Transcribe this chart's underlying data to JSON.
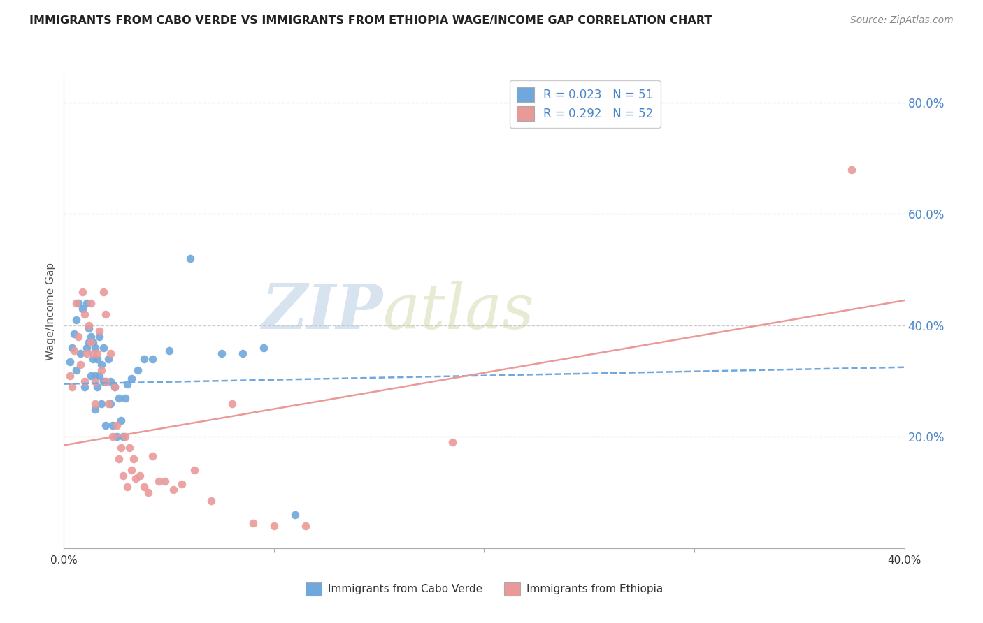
{
  "title": "IMMIGRANTS FROM CABO VERDE VS IMMIGRANTS FROM ETHIOPIA WAGE/INCOME GAP CORRELATION CHART",
  "source": "Source: ZipAtlas.com",
  "ylabel": "Wage/Income Gap",
  "xlim": [
    0.0,
    0.4
  ],
  "ylim": [
    0.0,
    0.85
  ],
  "right_yticks": [
    0.2,
    0.4,
    0.6,
    0.8
  ],
  "right_yticklabels": [
    "20.0%",
    "40.0%",
    "60.0%",
    "80.0%"
  ],
  "xticks": [
    0.0,
    0.1,
    0.2,
    0.3,
    0.4
  ],
  "xticklabels": [
    "0.0%",
    "",
    "",
    "",
    "40.0%"
  ],
  "watermark_zip": "ZIP",
  "watermark_atlas": "atlas",
  "cabo_verde_color": "#6fa8dc",
  "ethiopia_color": "#ea9999",
  "cabo_verde_R": "0.023",
  "cabo_verde_N": "51",
  "ethiopia_R": "0.292",
  "ethiopia_N": "52",
  "cabo_verde_scatter_x": [
    0.003,
    0.004,
    0.005,
    0.006,
    0.006,
    0.007,
    0.008,
    0.009,
    0.01,
    0.011,
    0.011,
    0.012,
    0.012,
    0.013,
    0.013,
    0.014,
    0.014,
    0.015,
    0.015,
    0.015,
    0.016,
    0.016,
    0.017,
    0.017,
    0.018,
    0.018,
    0.019,
    0.019,
    0.02,
    0.02,
    0.021,
    0.022,
    0.022,
    0.023,
    0.024,
    0.025,
    0.026,
    0.027,
    0.028,
    0.029,
    0.03,
    0.032,
    0.035,
    0.038,
    0.042,
    0.05,
    0.06,
    0.075,
    0.085,
    0.095,
    0.11
  ],
  "cabo_verde_scatter_y": [
    0.335,
    0.36,
    0.385,
    0.32,
    0.41,
    0.44,
    0.35,
    0.43,
    0.29,
    0.36,
    0.44,
    0.37,
    0.395,
    0.31,
    0.38,
    0.34,
    0.37,
    0.25,
    0.31,
    0.36,
    0.29,
    0.34,
    0.31,
    0.38,
    0.26,
    0.33,
    0.3,
    0.36,
    0.22,
    0.3,
    0.34,
    0.26,
    0.3,
    0.22,
    0.29,
    0.2,
    0.27,
    0.23,
    0.2,
    0.27,
    0.295,
    0.305,
    0.32,
    0.34,
    0.34,
    0.355,
    0.52,
    0.35,
    0.35,
    0.36,
    0.06
  ],
  "ethiopia_scatter_x": [
    0.003,
    0.004,
    0.005,
    0.006,
    0.007,
    0.008,
    0.009,
    0.01,
    0.01,
    0.011,
    0.012,
    0.013,
    0.013,
    0.014,
    0.015,
    0.015,
    0.016,
    0.017,
    0.018,
    0.019,
    0.02,
    0.02,
    0.021,
    0.022,
    0.023,
    0.024,
    0.025,
    0.026,
    0.027,
    0.028,
    0.029,
    0.03,
    0.031,
    0.032,
    0.033,
    0.034,
    0.036,
    0.038,
    0.04,
    0.042,
    0.045,
    0.048,
    0.052,
    0.056,
    0.062,
    0.07,
    0.08,
    0.09,
    0.1,
    0.115,
    0.185,
    0.375
  ],
  "ethiopia_scatter_y": [
    0.31,
    0.29,
    0.355,
    0.44,
    0.38,
    0.33,
    0.46,
    0.42,
    0.3,
    0.35,
    0.4,
    0.44,
    0.37,
    0.35,
    0.3,
    0.26,
    0.35,
    0.39,
    0.32,
    0.46,
    0.3,
    0.42,
    0.26,
    0.35,
    0.2,
    0.29,
    0.22,
    0.16,
    0.18,
    0.13,
    0.2,
    0.11,
    0.18,
    0.14,
    0.16,
    0.125,
    0.13,
    0.11,
    0.1,
    0.165,
    0.12,
    0.12,
    0.105,
    0.115,
    0.14,
    0.085,
    0.26,
    0.045,
    0.04,
    0.04,
    0.19,
    0.68
  ],
  "cabo_verde_trend_x": [
    0.0,
    0.4
  ],
  "cabo_verde_trend_y": [
    0.295,
    0.325
  ],
  "ethiopia_trend_x": [
    0.0,
    0.4
  ],
  "ethiopia_trend_y": [
    0.185,
    0.445
  ],
  "grid_color": "#cccccc",
  "background_color": "#ffffff",
  "title_color": "#222222",
  "right_axis_color": "#4a86c8",
  "bottom_legend1": "Immigrants from Cabo Verde",
  "bottom_legend2": "Immigrants from Ethiopia"
}
